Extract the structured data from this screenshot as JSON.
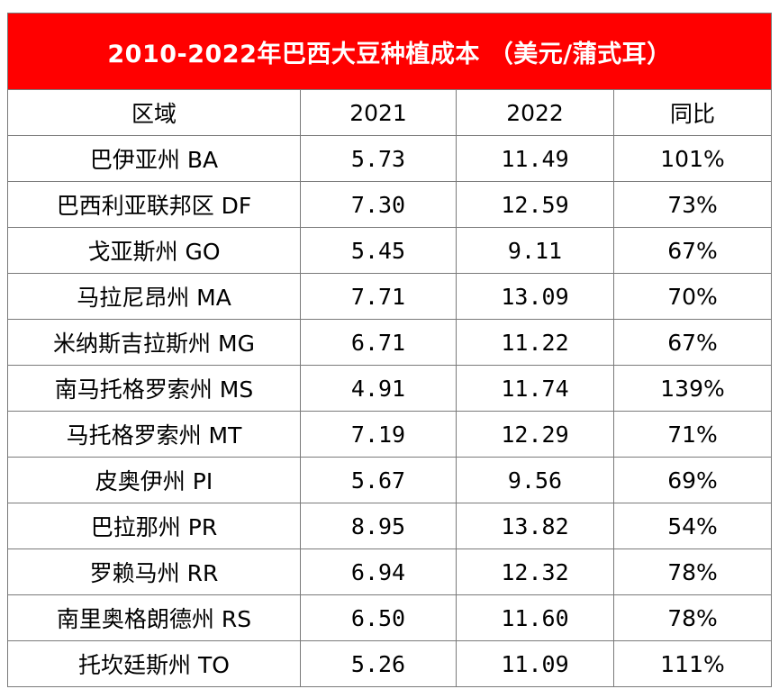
{
  "title": "2010-2022年巴西大豆种植成本 （美元/蒲式耳）",
  "headers": [
    "区域",
    "2021",
    "2022",
    "同比"
  ],
  "rows": [
    {
      "region": "巴伊亚州 BA",
      "y2021": "5.73",
      "y2022": "11.49",
      "yoy": "101%"
    },
    {
      "region": "巴西利亚联邦区 DF",
      "y2021": "7.30",
      "y2022": "12.59",
      "yoy": "73%"
    },
    {
      "region": "戈亚斯州 GO",
      "y2021": "5.45",
      "y2022": "9.11",
      "yoy": "67%"
    },
    {
      "region": "马拉尼昂州 MA",
      "y2021": "7.71",
      "y2022": "13.09",
      "yoy": "70%"
    },
    {
      "region": "米纳斯吉拉斯州 MG",
      "y2021": "6.71",
      "y2022": "11.22",
      "yoy": "67%"
    },
    {
      "region": "南马托格罗索州 MS",
      "y2021": "4.91",
      "y2022": "11.74",
      "yoy": "139%"
    },
    {
      "region": "马托格罗索州 MT",
      "y2021": "7.19",
      "y2022": "12.29",
      "yoy": "71%"
    },
    {
      "region": "皮奥伊州 PI",
      "y2021": "5.67",
      "y2022": "9.56",
      "yoy": "69%"
    },
    {
      "region": "巴拉那州 PR",
      "y2021": "8.95",
      "y2022": "13.82",
      "yoy": "54%"
    },
    {
      "region": "罗赖马州 RR",
      "y2021": "6.94",
      "y2022": "12.32",
      "yoy": "78%"
    },
    {
      "region": "南里奥格朗德州 RS",
      "y2021": "6.50",
      "y2022": "11.60",
      "yoy": "78%"
    },
    {
      "region": "托坎廷斯州 TO",
      "y2021": "5.26",
      "y2022": "11.09",
      "yoy": "111%"
    }
  ],
  "colors": {
    "title_background": "#ff0000",
    "title_text": "#ffffff",
    "grid": "#7a7a7a"
  }
}
